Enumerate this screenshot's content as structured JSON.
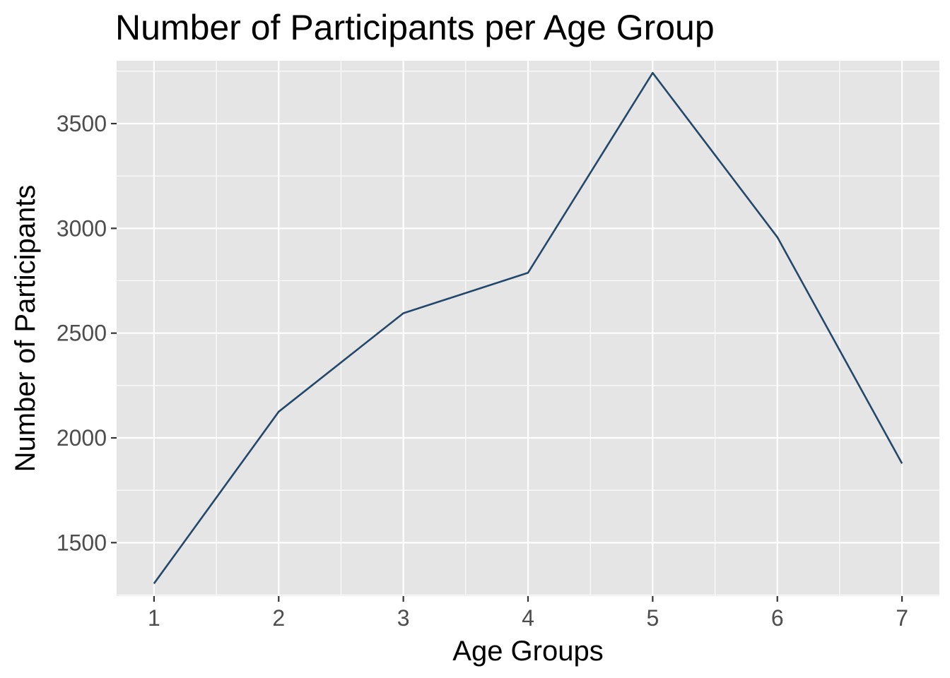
{
  "chart_data": {
    "type": "line",
    "title": "Number of Participants per Age Group",
    "xlabel": "Age Groups",
    "ylabel": "Number of Participants",
    "x": [
      1,
      2,
      3,
      4,
      5,
      6,
      7
    ],
    "x_ticks": [
      "1",
      "2",
      "3",
      "4",
      "5",
      "6",
      "7"
    ],
    "y_ticks": [
      "1500",
      "2000",
      "2500",
      "3000",
      "3500"
    ],
    "series": [
      {
        "values": [
          1305,
          2125,
          2595,
          2788,
          3742,
          2958,
          1878
        ],
        "color": "#23486b"
      }
    ],
    "xlim": [
      0.7,
      7.3
    ],
    "ylim": [
      1245,
      3800
    ],
    "grid": true,
    "legend": "none",
    "panel_background": "#e5e5e5"
  }
}
